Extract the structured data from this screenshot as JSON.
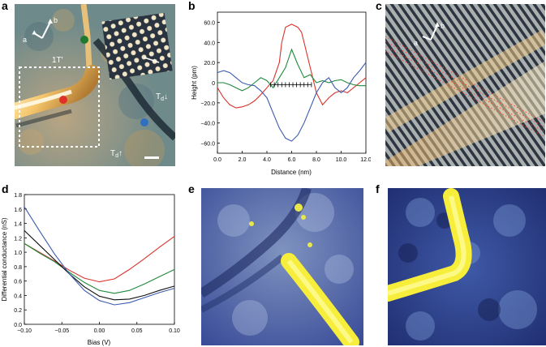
{
  "panel_labels": {
    "a": "a",
    "b": "b",
    "c": "c",
    "d": "d",
    "e": "e",
    "f": "f"
  },
  "panel_a": {
    "axis_a": "a",
    "axis_b": "b",
    "phase_1T": "1T′",
    "phase_Td_down": "T",
    "phase_Td_down_sub": "d",
    "phase_Td_down_arrow": "↓",
    "phase_Td_up": "T",
    "phase_Td_up_sub": "d",
    "phase_Td_up_arrow": "↑",
    "colors": {
      "red": "#e0302a",
      "green": "#1e7a2e",
      "blue": "#2f6fc0"
    }
  },
  "panel_c": {
    "axis_a": "a",
    "axis_b": "b"
  },
  "chart_data": [
    {
      "id": "b",
      "type": "line",
      "title": "",
      "xlabel": "Distance (nm)",
      "ylabel": "Height (pm)",
      "xlim": [
        0,
        12
      ],
      "ylim": [
        -70,
        70
      ],
      "xticks": [
        "0.0",
        "2.0",
        "4.0",
        "6.0",
        "8.0",
        "10.0",
        "12.0"
      ],
      "yticks": [
        "60.0",
        "40.0",
        "20.0",
        "0",
        "−20.0",
        "−40.0",
        "−60.0"
      ],
      "series": [
        {
          "name": "red",
          "color": "#d9332c",
          "x": [
            0,
            0.5,
            1,
            1.5,
            2,
            2.5,
            3,
            3.5,
            4,
            4.5,
            5,
            5.2,
            5.5,
            6,
            6.5,
            6.8,
            7,
            7.5,
            8,
            8.5,
            9,
            9.5,
            10,
            10.5,
            11,
            11.5,
            12
          ],
          "y": [
            -5,
            -15,
            -22,
            -25,
            -24,
            -22,
            -18,
            -12,
            -5,
            2,
            20,
            40,
            55,
            58,
            55,
            50,
            40,
            15,
            -10,
            -22,
            -15,
            -10,
            -8,
            -10,
            -5,
            0,
            5
          ]
        },
        {
          "name": "green",
          "color": "#1e8a3a",
          "x": [
            0,
            0.5,
            1,
            1.5,
            2,
            2.5,
            3,
            3.5,
            4,
            4.5,
            5,
            5.5,
            6,
            6.5,
            7,
            7.5,
            8,
            8.5,
            9,
            9.5,
            10,
            10.5,
            11,
            11.5,
            12
          ],
          "y": [
            0,
            0,
            -2,
            -5,
            -8,
            -5,
            0,
            5,
            2,
            -5,
            5,
            15,
            33,
            18,
            5,
            8,
            0,
            2,
            0,
            2,
            3,
            0,
            -2,
            -3,
            -3
          ]
        },
        {
          "name": "blue",
          "color": "#3c5bb0",
          "x": [
            0,
            0.5,
            1,
            1.5,
            2,
            2.5,
            3,
            3.5,
            4,
            4.5,
            5,
            5.5,
            6,
            6.5,
            7,
            7.5,
            8,
            8.5,
            9,
            9.5,
            10,
            10.5,
            11,
            11.5,
            12
          ],
          "y": [
            10,
            12,
            10,
            5,
            0,
            -2,
            -3,
            -8,
            -15,
            -30,
            -45,
            -55,
            -58,
            -52,
            -40,
            -25,
            -10,
            0,
            5,
            -5,
            -10,
            -5,
            5,
            12,
            20
          ]
        }
      ],
      "annotation": {
        "type": "lattice-ticks",
        "x_start": 4.3,
        "x_end": 7.6,
        "y": -2,
        "count": 12
      }
    },
    {
      "id": "d",
      "type": "line",
      "title": "",
      "xlabel": "Bias (V)",
      "ylabel": "Differential conductance (nS)",
      "xlim": [
        -0.1,
        0.1
      ],
      "ylim": [
        0.0,
        1.8
      ],
      "xticks": [
        "−0.10",
        "−0.05",
        "0.00",
        "0.05",
        "0.10"
      ],
      "yticks": [
        "0.0",
        "0.2",
        "0.4",
        "0.6",
        "0.8",
        "1.0",
        "1.2",
        "1.4",
        "1.6",
        "1.8"
      ],
      "series": [
        {
          "name": "red",
          "color": "#d9332c",
          "x": [
            -0.1,
            -0.08,
            -0.06,
            -0.04,
            -0.02,
            0.0,
            0.02,
            0.04,
            0.06,
            0.08,
            0.1
          ],
          "y": [
            1.12,
            1.0,
            0.88,
            0.75,
            0.64,
            0.59,
            0.63,
            0.76,
            0.91,
            1.07,
            1.22
          ]
        },
        {
          "name": "green",
          "color": "#1e8a3a",
          "x": [
            -0.1,
            -0.08,
            -0.06,
            -0.04,
            -0.02,
            0.0,
            0.02,
            0.04,
            0.06,
            0.08,
            0.1
          ],
          "y": [
            1.12,
            0.99,
            0.87,
            0.72,
            0.58,
            0.47,
            0.43,
            0.47,
            0.56,
            0.66,
            0.76
          ]
        },
        {
          "name": "black",
          "color": "#111111",
          "x": [
            -0.1,
            -0.08,
            -0.06,
            -0.04,
            -0.02,
            0.0,
            0.02,
            0.04,
            0.06,
            0.08,
            0.1
          ],
          "y": [
            1.3,
            1.1,
            0.9,
            0.7,
            0.52,
            0.39,
            0.34,
            0.35,
            0.4,
            0.47,
            0.53
          ]
        },
        {
          "name": "blue",
          "color": "#3c5bb0",
          "x": [
            -0.1,
            -0.08,
            -0.06,
            -0.04,
            -0.02,
            0.0,
            0.02,
            0.04,
            0.06,
            0.08,
            0.1
          ],
          "y": [
            1.63,
            1.3,
            0.98,
            0.7,
            0.47,
            0.33,
            0.27,
            0.3,
            0.37,
            0.44,
            0.5
          ]
        }
      ]
    }
  ]
}
